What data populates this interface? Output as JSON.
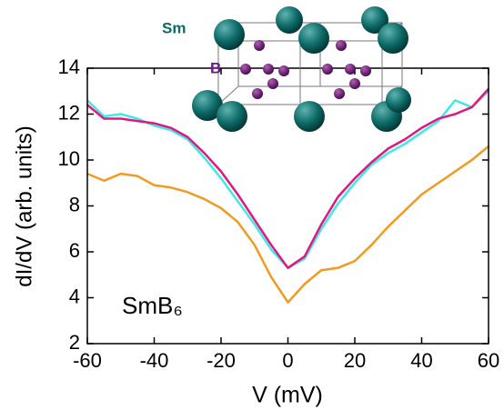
{
  "chart_data": {
    "type": "line",
    "x_label": "V (mV)",
    "y_label": "dI/dV (arb. units)",
    "annotations": [
      "SmB₆",
      "Sm",
      "B"
    ],
    "x": [
      -60,
      -55,
      -50,
      -45,
      -40,
      -35,
      -30,
      -25,
      -20,
      -15,
      -10,
      -5,
      0,
      5,
      10,
      15,
      20,
      25,
      30,
      35,
      40,
      45,
      50,
      55,
      60
    ],
    "series": [
      {
        "color": "#40e8e8",
        "values": [
          12.6,
          11.9,
          12.0,
          11.8,
          11.5,
          11.3,
          10.9,
          10.1,
          9.2,
          8.2,
          7.2,
          6.1,
          5.3,
          5.7,
          7.0,
          8.1,
          9.0,
          9.8,
          10.3,
          10.7,
          11.2,
          11.7,
          12.6,
          12.3,
          13.0
        ]
      },
      {
        "color": "#e0187f",
        "values": [
          12.4,
          11.8,
          11.8,
          11.7,
          11.6,
          11.4,
          11.0,
          10.3,
          9.5,
          8.5,
          7.4,
          6.3,
          5.3,
          5.8,
          7.2,
          8.4,
          9.2,
          9.9,
          10.5,
          10.9,
          11.4,
          11.8,
          12.0,
          12.3,
          13.1
        ]
      },
      {
        "color": "#f39a1f",
        "values": [
          9.4,
          9.1,
          9.4,
          9.3,
          8.9,
          8.8,
          8.6,
          8.3,
          7.9,
          7.3,
          6.3,
          4.9,
          3.8,
          4.6,
          5.2,
          5.3,
          5.6,
          6.3,
          7.1,
          7.8,
          8.5,
          9.0,
          9.5,
          10.0,
          10.6
        ]
      }
    ],
    "xlim": [
      -60,
      60
    ],
    "xticks": [
      -60,
      -40,
      -20,
      0,
      20,
      40,
      60
    ],
    "ylim": [
      2,
      14
    ],
    "yticks": [
      2,
      4,
      6,
      8,
      10,
      12,
      14
    ]
  }
}
